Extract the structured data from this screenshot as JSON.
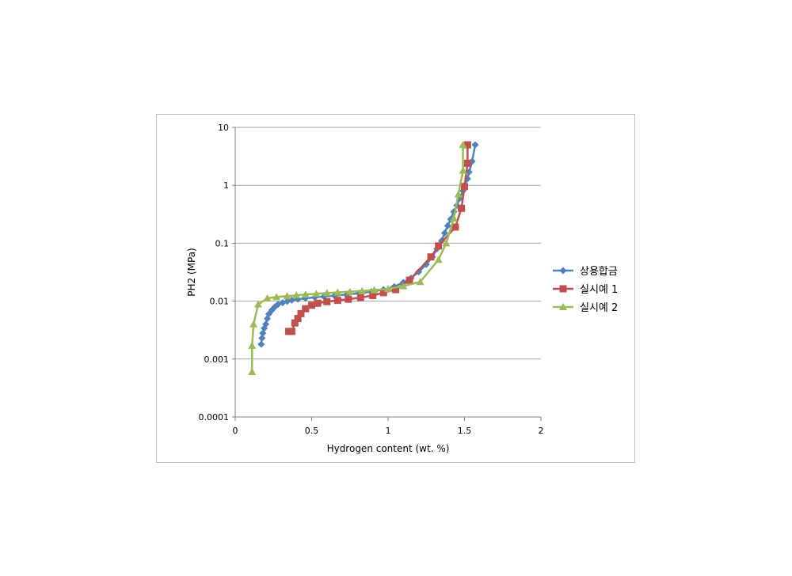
{
  "chart_data": {
    "type": "line",
    "title": "",
    "xlabel": "Hydrogen content (wt. %)",
    "ylabel": "PH2 (MPa)",
    "xlim": [
      0,
      2
    ],
    "ylim": [
      0.0001,
      10
    ],
    "yscale": "log",
    "grid": "horizontal",
    "legend": "right",
    "x_ticks": [
      "0",
      "0.5",
      "1",
      "1.5",
      "2"
    ],
    "y_ticks": [
      "0.0001",
      "0.001",
      "0.01",
      "0.1",
      "1",
      "10"
    ],
    "series": [
      {
        "name": "상용합금",
        "color": "#4f81bd",
        "marker": "diamond",
        "points": [
          [
            0.17,
            0.0018
          ],
          [
            0.175,
            0.0023
          ],
          [
            0.18,
            0.0028
          ],
          [
            0.19,
            0.0034
          ],
          [
            0.2,
            0.004
          ],
          [
            0.21,
            0.005
          ],
          [
            0.22,
            0.006
          ],
          [
            0.24,
            0.007
          ],
          [
            0.26,
            0.008
          ],
          [
            0.28,
            0.0088
          ],
          [
            0.31,
            0.0094
          ],
          [
            0.34,
            0.0099
          ],
          [
            0.37,
            0.0104
          ],
          [
            0.41,
            0.0108
          ],
          [
            0.46,
            0.0112
          ],
          [
            0.52,
            0.0116
          ],
          [
            0.58,
            0.012
          ],
          [
            0.65,
            0.0124
          ],
          [
            0.73,
            0.013
          ],
          [
            0.81,
            0.0137
          ],
          [
            0.89,
            0.0146
          ],
          [
            0.97,
            0.0158
          ],
          [
            1.04,
            0.0178
          ],
          [
            1.1,
            0.021
          ],
          [
            1.15,
            0.025
          ],
          [
            1.2,
            0.032
          ],
          [
            1.25,
            0.043
          ],
          [
            1.29,
            0.058
          ],
          [
            1.32,
            0.08
          ],
          [
            1.35,
            0.11
          ],
          [
            1.37,
            0.15
          ],
          [
            1.39,
            0.2
          ],
          [
            1.41,
            0.26
          ],
          [
            1.43,
            0.35
          ],
          [
            1.45,
            0.45
          ],
          [
            1.47,
            0.6
          ],
          [
            1.49,
            0.8
          ],
          [
            1.5,
            1.0
          ],
          [
            1.52,
            1.3
          ],
          [
            1.53,
            1.7
          ],
          [
            1.55,
            2.6
          ],
          [
            1.57,
            5.0
          ]
        ]
      },
      {
        "name": "실시예 1",
        "color": "#c0504d",
        "marker": "square",
        "points": [
          [
            0.35,
            0.003
          ],
          [
            0.37,
            0.003
          ],
          [
            0.39,
            0.0042
          ],
          [
            0.41,
            0.005
          ],
          [
            0.43,
            0.0061
          ],
          [
            0.46,
            0.0074
          ],
          [
            0.5,
            0.0085
          ],
          [
            0.54,
            0.0092
          ],
          [
            0.6,
            0.0098
          ],
          [
            0.67,
            0.0103
          ],
          [
            0.74,
            0.0108
          ],
          [
            0.82,
            0.0115
          ],
          [
            0.9,
            0.0125
          ],
          [
            0.97,
            0.014
          ],
          [
            1.05,
            0.0158
          ],
          [
            1.14,
            0.023
          ],
          [
            1.28,
            0.058
          ],
          [
            1.33,
            0.09
          ],
          [
            1.44,
            0.19
          ],
          [
            1.48,
            0.4
          ],
          [
            1.5,
            0.95
          ],
          [
            1.52,
            2.4
          ],
          [
            1.52,
            5.0
          ]
        ]
      },
      {
        "name": "실시예 2",
        "color": "#9bbb59",
        "marker": "triangle",
        "points": [
          [
            0.11,
            0.0006
          ],
          [
            0.11,
            0.0017
          ],
          [
            0.12,
            0.004
          ],
          [
            0.15,
            0.0088
          ],
          [
            0.21,
            0.0112
          ],
          [
            0.27,
            0.0118
          ],
          [
            0.34,
            0.0122
          ],
          [
            0.4,
            0.0126
          ],
          [
            0.46,
            0.013
          ],
          [
            0.53,
            0.0134
          ],
          [
            0.6,
            0.0138
          ],
          [
            0.67,
            0.0142
          ],
          [
            0.75,
            0.0146
          ],
          [
            0.83,
            0.015
          ],
          [
            0.91,
            0.0155
          ],
          [
            1.0,
            0.0163
          ],
          [
            1.1,
            0.0182
          ],
          [
            1.21,
            0.0215
          ],
          [
            1.33,
            0.052
          ],
          [
            1.38,
            0.1
          ],
          [
            1.43,
            0.27
          ],
          [
            1.46,
            0.7
          ],
          [
            1.49,
            1.8
          ],
          [
            1.49,
            5.0
          ]
        ]
      }
    ]
  }
}
